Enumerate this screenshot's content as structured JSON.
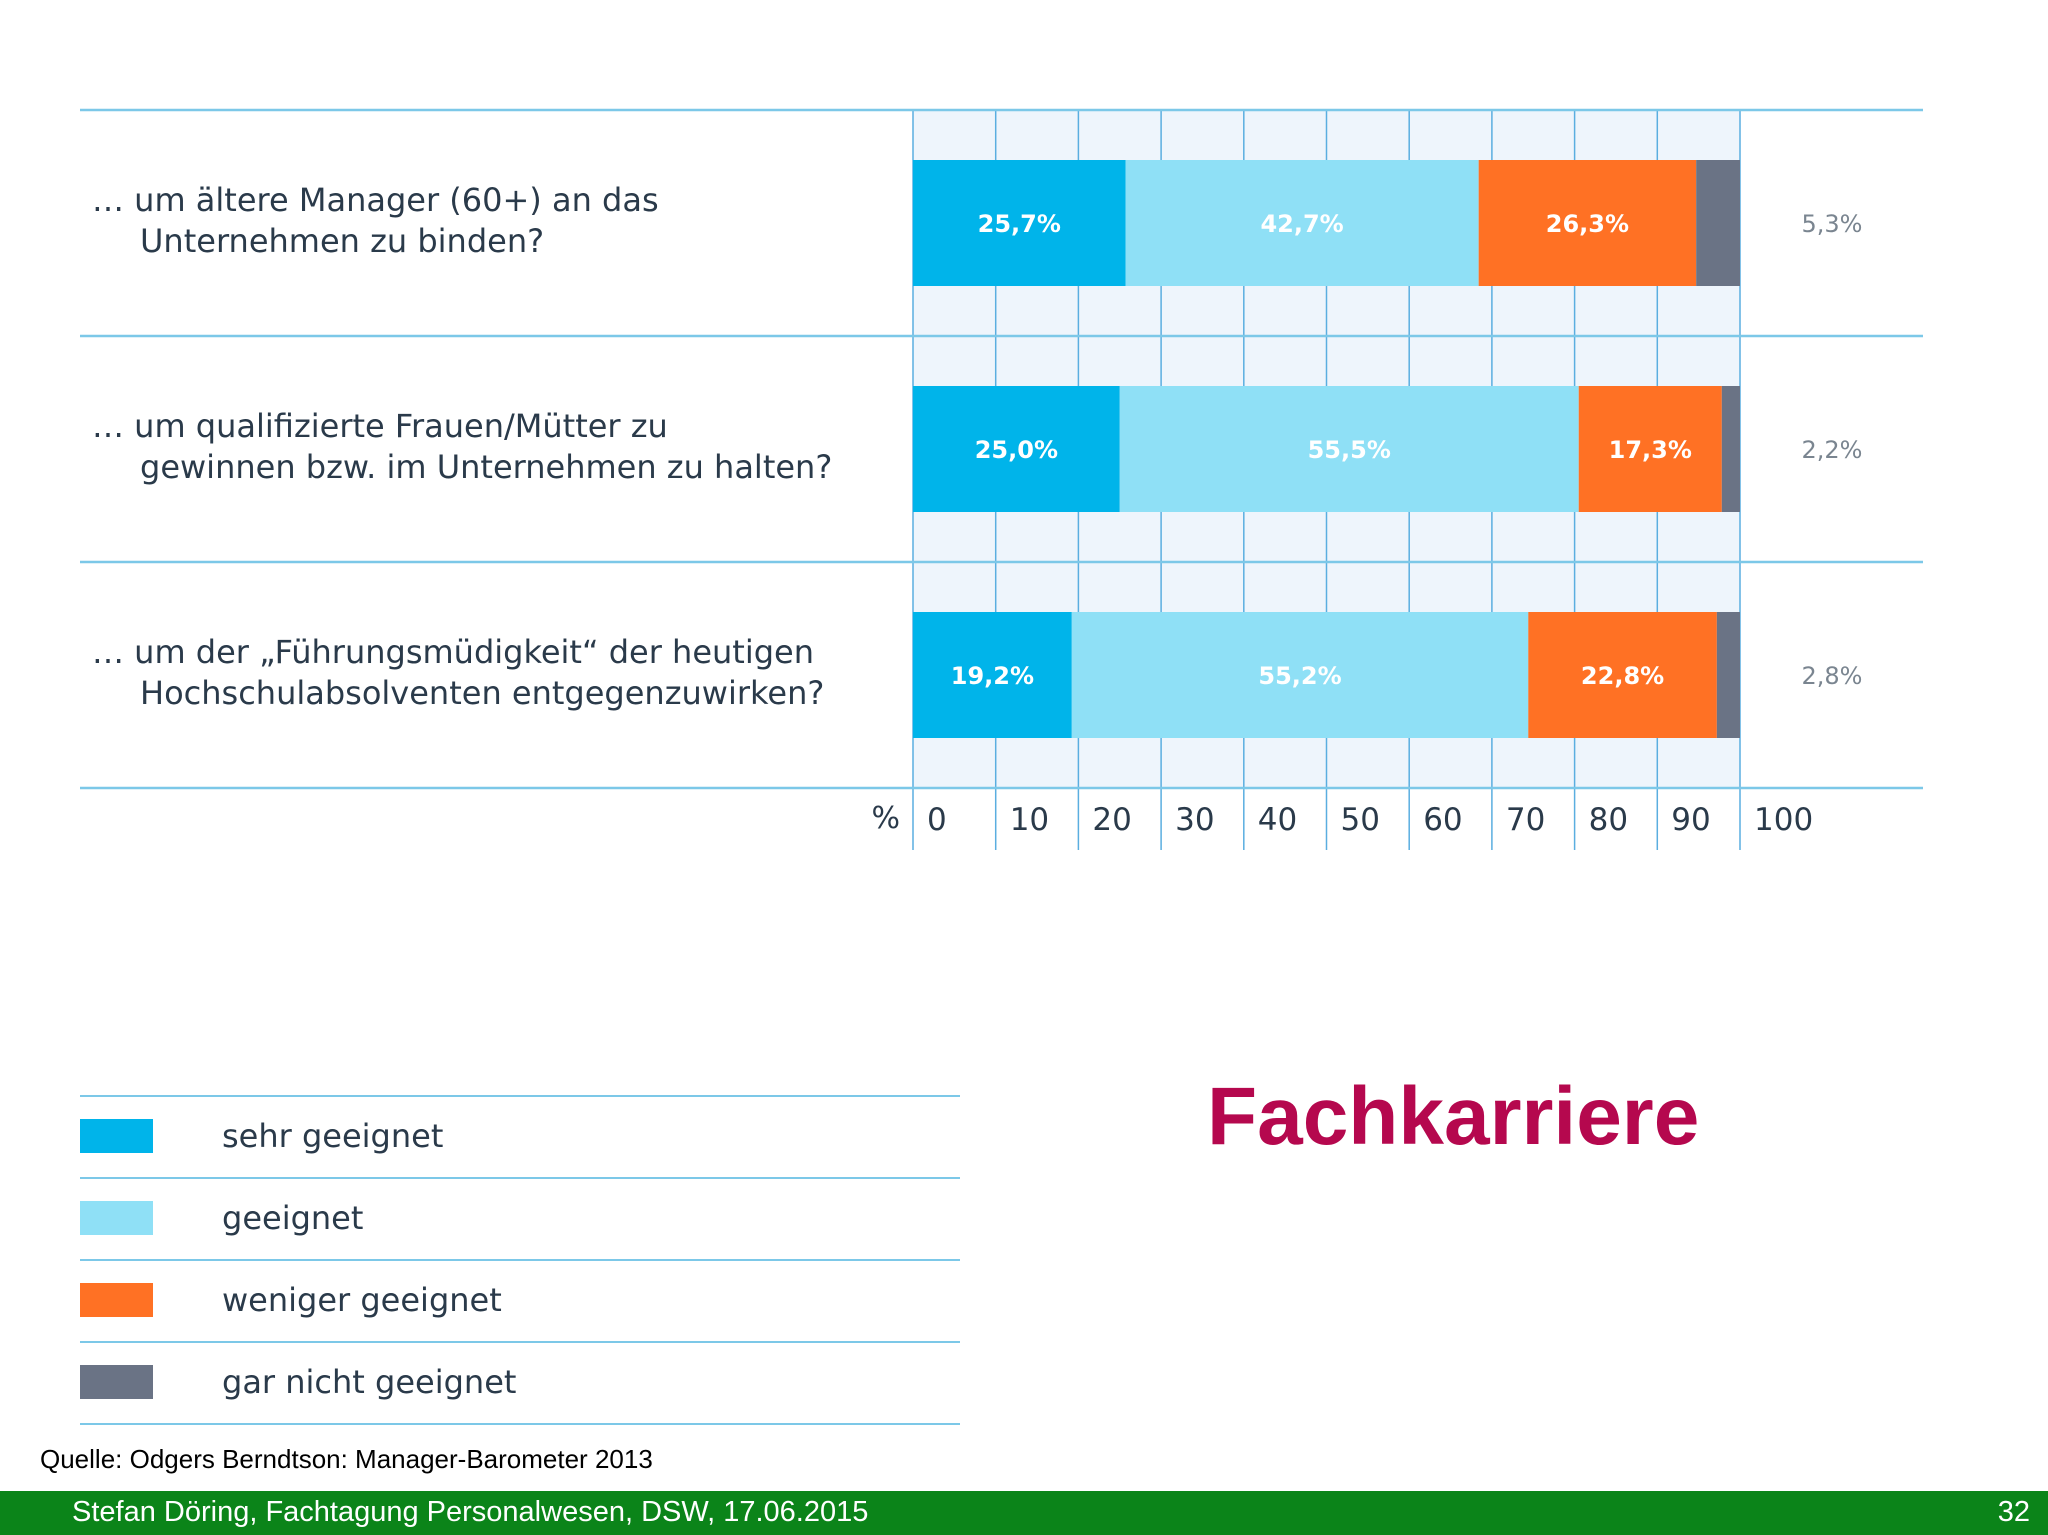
{
  "chart_data": {
    "type": "bar",
    "orientation": "horizontal",
    "stacked": true,
    "categories": [
      "… um ältere Manager (60+) an das Unternehmen zu binden?",
      "… um qualifizierte Frauen/Mütter zu gewinnen bzw. im Unternehmen zu halten?",
      "… um der „Führungsmüdigkeit“ der heutigen Hochschulabsolventen entgegenzuwirken?"
    ],
    "category_lines": [
      [
        "… um ältere Manager (60+) an das",
        "Unternehmen zu binden?"
      ],
      [
        "… um qualifizierte Frauen/Mütter zu",
        "gewinnen bzw. im Unternehmen zu halten?"
      ],
      [
        "… um der „Führungsmüdigkeit“ der heutigen",
        "Hochschulabsolventen entgegenzuwirken?"
      ]
    ],
    "series": [
      {
        "name": "sehr geeignet",
        "color": "#00b4ea",
        "values": [
          25.7,
          25.0,
          19.2
        ],
        "labels": [
          "25,7%",
          "25,0%",
          "19,2%"
        ]
      },
      {
        "name": "geeignet",
        "color": "#8fe0f6",
        "values": [
          42.7,
          55.5,
          55.2
        ],
        "labels": [
          "42,7%",
          "55,5%",
          "55,2%"
        ]
      },
      {
        "name": "weniger geeignet",
        "color": "#ff7124",
        "values": [
          26.3,
          17.3,
          22.8
        ],
        "labels": [
          "26,3%",
          "17,3%",
          "22,8%"
        ]
      },
      {
        "name": "gar nicht geeignet",
        "color": "#6a7385",
        "values": [
          5.3,
          2.2,
          2.8
        ],
        "labels": [
          "5,3%",
          "2,2%",
          "2,8%"
        ]
      }
    ],
    "xlim": [
      0,
      100
    ],
    "x_unit": "%",
    "x_ticks": [
      "0",
      "10",
      "20",
      "30",
      "40",
      "50",
      "60",
      "70",
      "80",
      "90",
      "100"
    ],
    "grid": true,
    "legend_position": "bottom-left"
  },
  "headline": "Fachkarriere",
  "source": "Quelle: Odgers Berndtson: Manager-Barometer 2013",
  "footer": {
    "text": "Stefan Döring, Fachtagung Personalwesen, DSW, 17.06.2015",
    "page": "32"
  },
  "colors": {
    "rule": "#7cc8e8",
    "grid_band": "#eef5fc",
    "grid_line": "#5aaee0",
    "headline": "#b5084e",
    "footer_bg": "#0b8419"
  }
}
